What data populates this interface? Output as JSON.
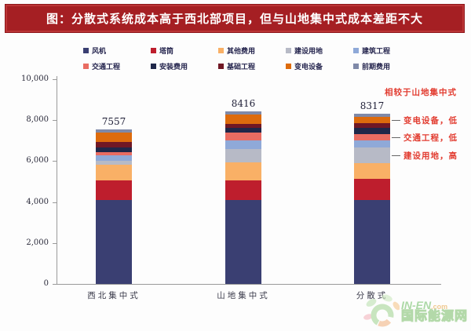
{
  "banner": {
    "title": "图：分散式系统成本高于西北部项目，但与山地集中式成本差距不大"
  },
  "chart_data": {
    "type": "bar",
    "stacked": true,
    "title": "",
    "xlabel": "",
    "ylabel": "",
    "grid": false,
    "legend_position": "top",
    "ylim": [
      0,
      10000
    ],
    "yticks": [
      {
        "label": "0",
        "value": 0
      },
      {
        "label": "2,000",
        "value": 2000
      },
      {
        "label": "4,000",
        "value": 4000
      },
      {
        "label": "6,000",
        "value": 6000
      },
      {
        "label": "8,000",
        "value": 8000
      },
      {
        "label": "10,000",
        "value": 10000
      }
    ],
    "categories": [
      "西北集中式",
      "山地集中式",
      "分散式"
    ],
    "totals": [
      "7557",
      "8416",
      "8317"
    ],
    "series": [
      {
        "name": "风机",
        "color": "#3a3f72",
        "values": [
          4100,
          4100,
          4100
        ]
      },
      {
        "name": "塔筒",
        "color": "#be1e2d",
        "values": [
          950,
          950,
          1020
        ]
      },
      {
        "name": "其他费用",
        "color": "#f9b066",
        "values": [
          780,
          900,
          780
        ]
      },
      {
        "name": "建设用地",
        "color": "#b7bac6",
        "values": [
          180,
          640,
          760
        ]
      },
      {
        "name": "建筑工程",
        "color": "#8fa9d8",
        "values": [
          280,
          420,
          350
        ]
      },
      {
        "name": "交通工程",
        "color": "#e96c62",
        "values": [
          130,
          380,
          300
        ]
      },
      {
        "name": "安装费用",
        "color": "#1f2749",
        "values": [
          230,
          220,
          300
        ]
      },
      {
        "name": "基础工程",
        "color": "#701825",
        "values": [
          270,
          220,
          230
        ]
      },
      {
        "name": "变电设备",
        "color": "#dd6b0d",
        "values": [
          480,
          460,
          320
        ]
      },
      {
        "name": "前期费用",
        "color": "#7f89a8",
        "values": [
          157,
          126,
          157
        ]
      }
    ]
  },
  "annotations": {
    "header": "相较于山地集中式",
    "items": [
      {
        "label": "变电设备，低",
        "segment": "变电设备"
      },
      {
        "label": "交通工程，低",
        "segment": "交通工程"
      },
      {
        "label": "建设用地，高",
        "segment": "建设用地"
      }
    ]
  },
  "watermark": {
    "brand": "IN-EN",
    "brand_suffix": ".com",
    "site_name": "国际能源网"
  }
}
